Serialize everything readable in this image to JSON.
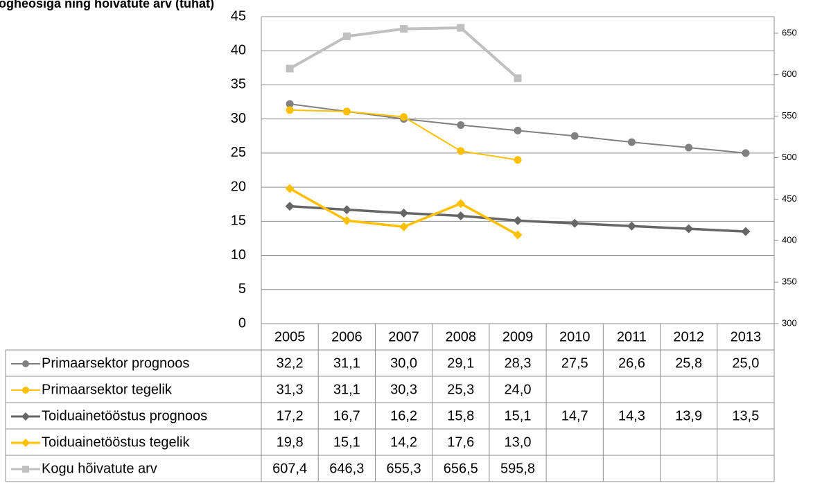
{
  "chart_data": {
    "type": "line",
    "title": "ogheosiga ning hõivatute arv (tuhat)",
    "categories": [
      "2005",
      "2006",
      "2007",
      "2008",
      "2009",
      "2010",
      "2011",
      "2012",
      "2013"
    ],
    "ylim": [
      0,
      45
    ],
    "yticks": [
      0,
      5,
      10,
      15,
      20,
      25,
      30,
      35,
      40,
      45
    ],
    "y2lim": [
      300,
      670
    ],
    "y2ticks": [
      300,
      350,
      400,
      450,
      500,
      550,
      600,
      650
    ],
    "grid": true,
    "series": [
      {
        "name": "Primaarsektor prognoos",
        "color": "#808080",
        "marker": "circle",
        "width": 2,
        "values": [
          32.2,
          31.1,
          30.0,
          29.1,
          28.3,
          27.5,
          26.6,
          25.8,
          25.0
        ],
        "value_labels": [
          "32,2",
          "31,1",
          "30,0",
          "29,1",
          "28,3",
          "27,5",
          "26,6",
          "25,8",
          "25,0"
        ]
      },
      {
        "name": "Primaarsektor tegelik",
        "color": "#ffc000",
        "marker": "circle",
        "width": 2,
        "values": [
          31.3,
          31.1,
          30.3,
          25.3,
          24.0,
          null,
          null,
          null,
          null
        ],
        "value_labels": [
          "31,3",
          "31,1",
          "30,3",
          "25,3",
          "24,0",
          null,
          null,
          null,
          null
        ]
      },
      {
        "name": "Toiduainetööstus prognoos",
        "color": "#666666",
        "marker": "diamond",
        "width": 3.5,
        "values": [
          17.2,
          16.7,
          16.2,
          15.8,
          15.1,
          14.7,
          14.3,
          13.9,
          13.5
        ],
        "value_labels": [
          "17,2",
          "16,7",
          "16,2",
          "15,8",
          "15,1",
          "14,7",
          "14,3",
          "13,9",
          "13,5"
        ]
      },
      {
        "name": "Toiduainetööstus tegelik",
        "color": "#ffc000",
        "marker": "diamond",
        "width": 3.5,
        "values": [
          19.8,
          15.1,
          14.2,
          17.6,
          13.0,
          null,
          null,
          null,
          null
        ],
        "value_labels": [
          "19,8",
          "15,1",
          "14,2",
          "17,6",
          "13,0",
          null,
          null,
          null,
          null
        ]
      },
      {
        "name": "Kogu hõivatute arv",
        "color": "#c0c0c0",
        "marker": "square",
        "width": 4,
        "axis": "y2",
        "values": [
          607.4,
          646.3,
          655.3,
          656.5,
          595.8,
          null,
          null,
          null,
          null
        ],
        "value_labels": [
          "607,4",
          "646,3",
          "655,3",
          "656,5",
          "595,8",
          null,
          null,
          null,
          null
        ]
      }
    ]
  }
}
